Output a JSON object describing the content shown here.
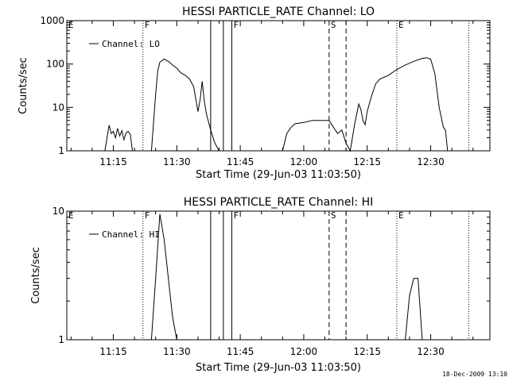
{
  "chart_data": [
    {
      "type": "line",
      "title": "HESSI PARTICLE_RATE Channel: LO",
      "xlabel": "Start Time (29-Jun-03 11:03:50)",
      "ylabel": "Counts/sec",
      "yscale": "log",
      "ylim": [
        1,
        1000
      ],
      "ytick_labels": [
        "1",
        "10",
        "100",
        "1000"
      ],
      "xlim": [
        "11:04",
        "12:44"
      ],
      "xtick_labels": [
        "11:15",
        "11:30",
        "11:45",
        "12:00",
        "12:15",
        "12:30"
      ],
      "legend": {
        "position": "top-left",
        "entries": [
          "Channel: LO"
        ]
      },
      "series": [
        {
          "name": "Channel: LO",
          "x": [
            "11:13",
            "11:14",
            "11:14.5",
            "11:15",
            "11:15.5",
            "11:16",
            "11:16.5",
            "11:17",
            "11:17.5",
            "11:18",
            "11:18.5",
            "11:19",
            "11:19.5",
            "11:24",
            "11:25",
            "11:25.5",
            "11:26",
            "11:27",
            "11:28",
            "11:29",
            "11:30",
            "11:31",
            "11:32",
            "11:33",
            "11:34",
            "11:35",
            "11:35.5",
            "11:36",
            "11:36.5",
            "11:37",
            "11:38",
            "11:39",
            "11:40",
            "11:41",
            "11:55",
            "11:56",
            "11:57",
            "11:58",
            "12:00",
            "12:02",
            "12:04",
            "12:05",
            "12:06",
            "12:07",
            "12:08",
            "12:09",
            "12:10",
            "12:11",
            "12:12",
            "12:13",
            "12:13.5",
            "12:14",
            "12:14.5",
            "12:15",
            "12:16",
            "12:17",
            "12:18",
            "12:20",
            "12:22",
            "12:24",
            "12:26",
            "12:28",
            "12:29",
            "12:30",
            "12:31",
            "12:32",
            "12:32.5",
            "12:33",
            "12:33.5",
            "12:34"
          ],
          "y": [
            1,
            3.9,
            2.5,
            2.8,
            2.0,
            3.3,
            2.2,
            2.9,
            1.8,
            2.6,
            2.8,
            2.4,
            1,
            1,
            20,
            70,
            110,
            130,
            115,
            95,
            80,
            62,
            55,
            45,
            30,
            8,
            15,
            40,
            14,
            7,
            3,
            1.5,
            1,
            1,
            1,
            2.5,
            3.5,
            4.2,
            4.5,
            5,
            5,
            5,
            5,
            3.5,
            2.5,
            3,
            1.5,
            1,
            4,
            12,
            9,
            5,
            4,
            8,
            18,
            35,
            45,
            55,
            75,
            95,
            115,
            135,
            140,
            130,
            60,
            10,
            6,
            3.5,
            3,
            1
          ]
        }
      ],
      "annotations": [
        {
          "text": "E",
          "x": "11:04",
          "style": "dotted"
        },
        {
          "text": "F",
          "x": "11:22",
          "style": "dotted"
        },
        {
          "text": "",
          "x": "11:38",
          "style": "solid"
        },
        {
          "text": "",
          "x": "11:41",
          "style": "solid"
        },
        {
          "text": "F",
          "x": "11:43",
          "style": "solid"
        },
        {
          "text": "S",
          "x": "12:06",
          "style": "dashed"
        },
        {
          "text": "",
          "x": "12:10",
          "style": "dashed"
        },
        {
          "text": "E",
          "x": "12:22",
          "style": "dotted"
        },
        {
          "text": "",
          "x": "12:39",
          "style": "dotted"
        }
      ]
    },
    {
      "type": "line",
      "title": "HESSI PARTICLE_RATE Channel: HI",
      "xlabel": "Start Time (29-Jun-03 11:03:50)",
      "ylabel": "Counts/sec",
      "yscale": "log",
      "ylim": [
        1,
        10
      ],
      "ytick_labels": [
        "1",
        "10"
      ],
      "xlim": [
        "11:04",
        "12:44"
      ],
      "xtick_labels": [
        "11:15",
        "11:30",
        "11:45",
        "12:00",
        "12:15",
        "12:30"
      ],
      "legend": {
        "position": "top-left",
        "entries": [
          "Channel: HI"
        ]
      },
      "series": [
        {
          "name": "Channel: HI",
          "x": [
            "11:24",
            "11:25",
            "11:26",
            "11:27",
            "11:28",
            "11:29",
            "11:30",
            "12:24",
            "12:25",
            "12:26",
            "12:27",
            "12:28"
          ],
          "y": [
            1,
            3,
            9.5,
            6,
            3,
            1.5,
            1,
            1,
            2.2,
            3,
            3,
            1
          ]
        }
      ],
      "annotations": [
        {
          "text": "E",
          "x": "11:04",
          "style": "dotted"
        },
        {
          "text": "F",
          "x": "11:22",
          "style": "dotted"
        },
        {
          "text": "",
          "x": "11:38",
          "style": "solid"
        },
        {
          "text": "",
          "x": "11:41",
          "style": "solid"
        },
        {
          "text": "F",
          "x": "11:43",
          "style": "solid"
        },
        {
          "text": "S",
          "x": "12:06",
          "style": "dashed"
        },
        {
          "text": "",
          "x": "12:10",
          "style": "dashed"
        },
        {
          "text": "E",
          "x": "12:22",
          "style": "dotted"
        },
        {
          "text": "",
          "x": "12:39",
          "style": "dotted"
        }
      ]
    }
  ],
  "footer": {
    "timestamp": "18-Dec-2009 13:10"
  }
}
